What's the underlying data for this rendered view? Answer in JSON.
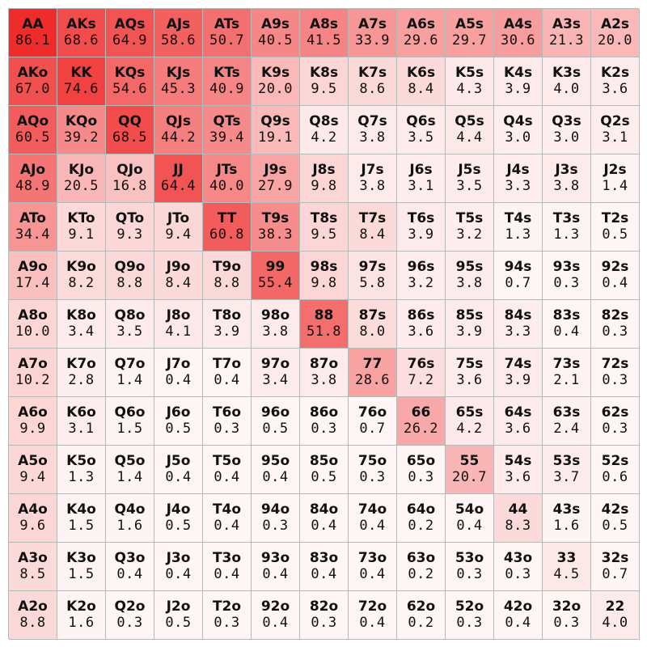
{
  "chart_data": {
    "type": "heatmap",
    "title": "",
    "colors": {
      "max": "#ef2b2b",
      "min": "#ffffff"
    },
    "rows": [
      {
        "hands": [
          "AA",
          "AKs",
          "AQs",
          "AJs",
          "ATs",
          "A9s",
          "A8s",
          "A7s",
          "A6s",
          "A5s",
          "A4s",
          "A3s",
          "A2s"
        ],
        "values": [
          "86.1",
          "68.6",
          "64.9",
          "58.6",
          "50.7",
          "40.5",
          "41.5",
          "33.9",
          "29.6",
          "29.7",
          "30.6",
          "21.3",
          "20.0"
        ]
      },
      {
        "hands": [
          "AKo",
          "KK",
          "KQs",
          "KJs",
          "KTs",
          "K9s",
          "K8s",
          "K7s",
          "K6s",
          "K5s",
          "K4s",
          "K3s",
          "K2s"
        ],
        "values": [
          "67.0",
          "74.6",
          "54.6",
          "45.3",
          "40.9",
          "20.0",
          "9.5",
          "8.6",
          "8.4",
          "4.3",
          "3.9",
          "4.0",
          "3.6"
        ]
      },
      {
        "hands": [
          "AQo",
          "KQo",
          "QQ",
          "QJs",
          "QTs",
          "Q9s",
          "Q8s",
          "Q7s",
          "Q6s",
          "Q5s",
          "Q4s",
          "Q3s",
          "Q2s"
        ],
        "values": [
          "60.5",
          "39.2",
          "68.5",
          "44.2",
          "39.4",
          "19.1",
          "4.2",
          "3.8",
          "3.5",
          "4.4",
          "3.0",
          "3.0",
          "3.1"
        ]
      },
      {
        "hands": [
          "AJo",
          "KJo",
          "QJo",
          "JJ",
          "JTs",
          "J9s",
          "J8s",
          "J7s",
          "J6s",
          "J5s",
          "J4s",
          "J3s",
          "J2s"
        ],
        "values": [
          "48.9",
          "20.5",
          "16.8",
          "64.4",
          "40.0",
          "27.9",
          "9.8",
          "3.8",
          "3.1",
          "3.5",
          "3.3",
          "3.8",
          "1.4"
        ]
      },
      {
        "hands": [
          "ATo",
          "KTo",
          "QTo",
          "JTo",
          "TT",
          "T9s",
          "T8s",
          "T7s",
          "T6s",
          "T5s",
          "T4s",
          "T3s",
          "T2s"
        ],
        "values": [
          "34.4",
          "9.1",
          "9.3",
          "9.4",
          "60.8",
          "38.3",
          "9.5",
          "8.4",
          "3.9",
          "3.2",
          "1.3",
          "1.3",
          "0.5"
        ]
      },
      {
        "hands": [
          "A9o",
          "K9o",
          "Q9o",
          "J9o",
          "T9o",
          "99",
          "98s",
          "97s",
          "96s",
          "95s",
          "94s",
          "93s",
          "92s"
        ],
        "values": [
          "17.4",
          "8.2",
          "8.8",
          "8.4",
          "8.8",
          "55.4",
          "9.8",
          "5.8",
          "3.2",
          "3.8",
          "0.7",
          "0.3",
          "0.4"
        ]
      },
      {
        "hands": [
          "A8o",
          "K8o",
          "Q8o",
          "J8o",
          "T8o",
          "98o",
          "88",
          "87s",
          "86s",
          "85s",
          "84s",
          "83s",
          "82s"
        ],
        "values": [
          "10.0",
          "3.4",
          "3.5",
          "4.1",
          "3.9",
          "3.8",
          "51.8",
          "8.0",
          "3.6",
          "3.9",
          "3.3",
          "0.4",
          "0.3"
        ]
      },
      {
        "hands": [
          "A7o",
          "K7o",
          "Q7o",
          "J7o",
          "T7o",
          "97o",
          "87o",
          "77",
          "76s",
          "75s",
          "74s",
          "73s",
          "72s"
        ],
        "values": [
          "10.2",
          "2.8",
          "1.4",
          "0.4",
          "0.4",
          "3.4",
          "3.8",
          "28.6",
          "7.2",
          "3.6",
          "3.9",
          "2.1",
          "0.3"
        ]
      },
      {
        "hands": [
          "A6o",
          "K6o",
          "Q6o",
          "J6o",
          "T6o",
          "96o",
          "86o",
          "76o",
          "66",
          "65s",
          "64s",
          "63s",
          "62s"
        ],
        "values": [
          "9.9",
          "3.1",
          "1.5",
          "0.5",
          "0.3",
          "0.5",
          "0.3",
          "0.7",
          "26.2",
          "4.2",
          "3.6",
          "2.4",
          "0.3"
        ]
      },
      {
        "hands": [
          "A5o",
          "K5o",
          "Q5o",
          "J5o",
          "T5o",
          "95o",
          "85o",
          "75o",
          "65o",
          "55",
          "54s",
          "53s",
          "52s"
        ],
        "values": [
          "9.4",
          "1.3",
          "1.4",
          "0.4",
          "0.4",
          "0.4",
          "0.5",
          "0.3",
          "0.3",
          "20.7",
          "3.6",
          "3.7",
          "0.6"
        ]
      },
      {
        "hands": [
          "A4o",
          "K4o",
          "Q4o",
          "J4o",
          "T4o",
          "94o",
          "84o",
          "74o",
          "64o",
          "54o",
          "44",
          "43s",
          "42s"
        ],
        "values": [
          "9.6",
          "1.5",
          "1.6",
          "0.5",
          "0.4",
          "0.3",
          "0.4",
          "0.4",
          "0.2",
          "0.4",
          "8.3",
          "1.6",
          "0.5"
        ]
      },
      {
        "hands": [
          "A3o",
          "K3o",
          "Q3o",
          "J3o",
          "T3o",
          "93o",
          "83o",
          "73o",
          "63o",
          "53o",
          "43o",
          "33",
          "32s"
        ],
        "values": [
          "8.5",
          "1.5",
          "0.4",
          "0.4",
          "0.4",
          "0.4",
          "0.4",
          "0.4",
          "0.2",
          "0.3",
          "0.3",
          "4.5",
          "0.7"
        ]
      },
      {
        "hands": [
          "A2o",
          "K2o",
          "Q2o",
          "J2o",
          "T2o",
          "92o",
          "82o",
          "72o",
          "62o",
          "52o",
          "42o",
          "32o",
          "22"
        ],
        "values": [
          "8.8",
          "1.6",
          "0.3",
          "0.5",
          "0.3",
          "0.4",
          "0.3",
          "0.4",
          "0.2",
          "0.3",
          "0.4",
          "0.3",
          "4.0"
        ]
      }
    ]
  }
}
